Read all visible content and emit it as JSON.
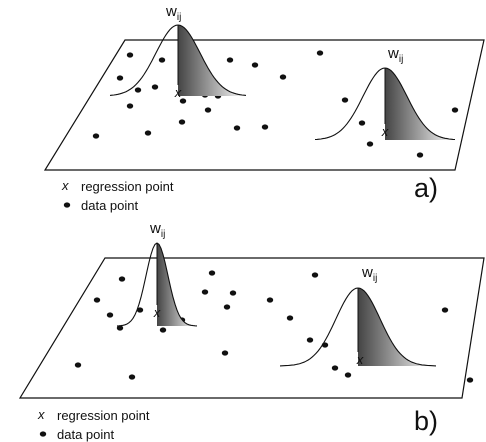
{
  "panels": [
    {
      "label": "a)",
      "peaks": [
        {
          "weight": {
            "base": "w",
            "sub": "ij"
          },
          "marker": "x"
        },
        {
          "weight": {
            "base": "w",
            "sub": "ij"
          },
          "marker": "x"
        }
      ],
      "legend": {
        "regression": {
          "symbol": "x",
          "text": "regression point"
        },
        "data": {
          "text": "data point"
        }
      }
    },
    {
      "label": "b)",
      "peaks": [
        {
          "weight": {
            "base": "w",
            "sub": "ij"
          },
          "marker": "x"
        },
        {
          "weight": {
            "base": "w",
            "sub": "ij"
          },
          "marker": "x"
        }
      ],
      "legend": {
        "regression": {
          "symbol": "x",
          "text": "regression point"
        },
        "data": {
          "text": "data point"
        }
      }
    }
  ]
}
